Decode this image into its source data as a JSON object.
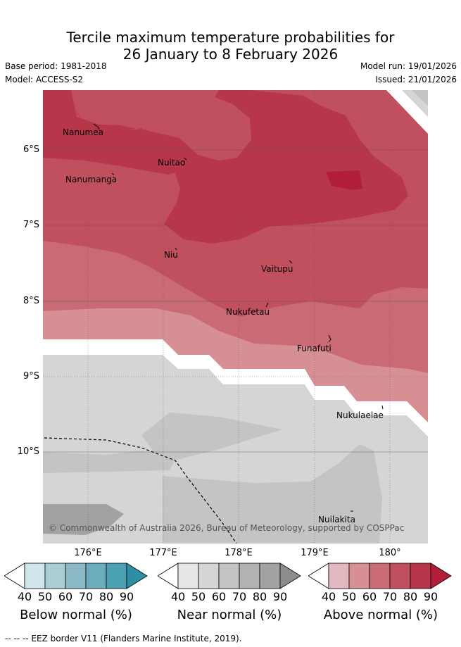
{
  "title": {
    "line1": "Tercile maximum temperature probabilities for",
    "line2": "26 January to 8 February 2026"
  },
  "meta": {
    "base_period": "Base period: 1981-2018",
    "model": "Model: ACCESS-S2",
    "model_run": "Model run: 19/01/2026",
    "issued": "Issued: 21/01/2026"
  },
  "lat_labels": [
    "6°S",
    "7°S",
    "8°S",
    "9°S",
    "10°S"
  ],
  "lon_labels": [
    "176°E",
    "177°E",
    "178°E",
    "179°E",
    "180°"
  ],
  "places": [
    "Nanumea",
    "Nuitao",
    "Nanumanga",
    "Niu",
    "Vaitupu",
    "Nukufetau",
    "Funafuti",
    "Nukulaelae",
    "Nuilakita"
  ],
  "copyright": "© Commonwealth of Australia 2026, Bureau of Meteorology, supported by COSPPac",
  "colorbars": {
    "ticks": [
      "40",
      "50",
      "60",
      "70",
      "80",
      "90"
    ],
    "below": {
      "label": "Below normal (%)",
      "colors": [
        "#ffffff",
        "#cfe6ec",
        "#a9cdd3",
        "#8bbac6",
        "#6cadbd",
        "#4a9fb1",
        "#2d8ea4"
      ]
    },
    "near": {
      "label": "Near normal (%)",
      "colors": [
        "#ffffff",
        "#e6e6e6",
        "#d5d5d5",
        "#c4c4c4",
        "#b2b2b2",
        "#a2a2a2",
        "#8c8c8c"
      ]
    },
    "above": {
      "label": "Above normal (%)",
      "colors": [
        "#ffffff",
        "#e3b8be",
        "#d78f96",
        "#c96a74",
        "#c0505e",
        "#b7364a",
        "#b01e3a"
      ]
    }
  },
  "footer": "--  --  -- EEZ border V11 (Flanders Marine Institute, 2019)."
}
